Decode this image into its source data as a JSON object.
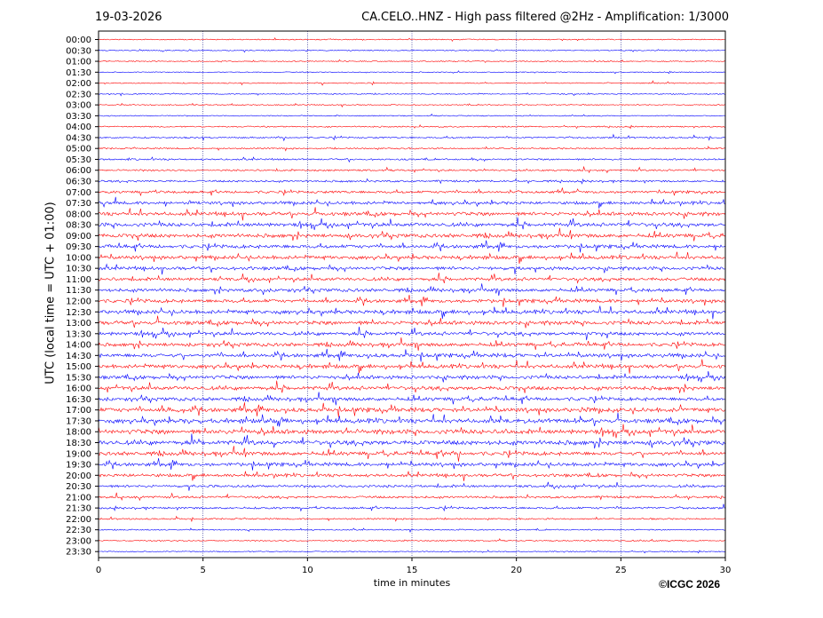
{
  "header": {
    "date": "19-03-2026",
    "title": "CA.CELO..HNZ - High pass filtered @2Hz - Amplification: 1/3000"
  },
  "footer": {
    "copyright": "©ICGC 2026"
  },
  "colors": {
    "red_trace": "#ff0000",
    "blue_trace": "#0000ff",
    "grid": "#000080"
  },
  "chart_data": {
    "type": "line",
    "subtype": "helicorder",
    "xlabel": "time in minutes",
    "ylabel": "UTC (local time = UTC + 01:00)",
    "xlim": [
      0,
      30
    ],
    "x_ticks": [
      0,
      5,
      10,
      15,
      20,
      25,
      30
    ],
    "grid": "vertical dotted at x ticks",
    "row_colors_alternate": [
      "red",
      "blue"
    ],
    "rows": [
      {
        "label": "00:00",
        "activity": 0.05
      },
      {
        "label": "00:30",
        "activity": 0.05
      },
      {
        "label": "01:00",
        "activity": 0.05
      },
      {
        "label": "01:30",
        "activity": 0.05
      },
      {
        "label": "02:00",
        "activity": 0.06
      },
      {
        "label": "02:30",
        "activity": 0.06
      },
      {
        "label": "03:00",
        "activity": 0.06
      },
      {
        "label": "03:30",
        "activity": 0.06
      },
      {
        "label": "04:00",
        "activity": 0.12
      },
      {
        "label": "04:30",
        "activity": 0.15
      },
      {
        "label": "05:00",
        "activity": 0.15
      },
      {
        "label": "05:30",
        "activity": 0.18
      },
      {
        "label": "06:00",
        "activity": 0.2
      },
      {
        "label": "06:30",
        "activity": 0.25
      },
      {
        "label": "07:00",
        "activity": 0.35
      },
      {
        "label": "07:30",
        "activity": 0.45
      },
      {
        "label": "08:00",
        "activity": 0.55
      },
      {
        "label": "08:30",
        "activity": 0.6
      },
      {
        "label": "09:00",
        "activity": 0.6
      },
      {
        "label": "09:30",
        "activity": 0.55
      },
      {
        "label": "10:00",
        "activity": 0.55
      },
      {
        "label": "10:30",
        "activity": 0.5
      },
      {
        "label": "11:00",
        "activity": 0.5
      },
      {
        "label": "11:30",
        "activity": 0.5
      },
      {
        "label": "12:00",
        "activity": 0.55
      },
      {
        "label": "12:30",
        "activity": 0.6
      },
      {
        "label": "13:00",
        "activity": 0.6
      },
      {
        "label": "13:30",
        "activity": 0.55
      },
      {
        "label": "14:00",
        "activity": 0.55
      },
      {
        "label": "14:30",
        "activity": 0.6
      },
      {
        "label": "15:00",
        "activity": 0.6
      },
      {
        "label": "15:30",
        "activity": 0.55
      },
      {
        "label": "16:00",
        "activity": 0.6
      },
      {
        "label": "16:30",
        "activity": 0.55
      },
      {
        "label": "17:00",
        "activity": 0.7
      },
      {
        "label": "17:30",
        "activity": 0.7
      },
      {
        "label": "18:00",
        "activity": 0.75
      },
      {
        "label": "18:30",
        "activity": 0.75
      },
      {
        "label": "19:00",
        "activity": 0.6
      },
      {
        "label": "19:30",
        "activity": 0.55
      },
      {
        "label": "20:00",
        "activity": 0.45
      },
      {
        "label": "20:30",
        "activity": 0.35
      },
      {
        "label": "21:00",
        "activity": 0.3
      },
      {
        "label": "21:30",
        "activity": 0.25
      },
      {
        "label": "22:00",
        "activity": 0.15
      },
      {
        "label": "22:30",
        "activity": 0.08
      },
      {
        "label": "23:00",
        "activity": 0.08
      },
      {
        "label": "23:30",
        "activity": 0.06
      }
    ]
  }
}
